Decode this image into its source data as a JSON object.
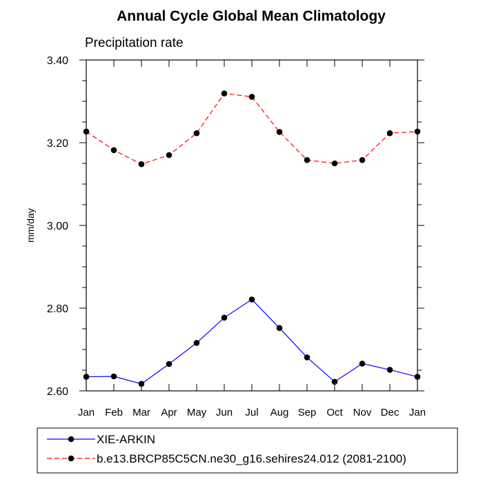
{
  "chart_data": {
    "type": "line",
    "title": "Annual Cycle Global Mean Climatology",
    "subtitle": "Precipitation rate",
    "xlabel": "",
    "ylabel": "mm/day",
    "ylim": [
      2.6,
      3.4
    ],
    "yticks": [
      "2.60",
      "2.80",
      "3.00",
      "3.20",
      "3.40"
    ],
    "categories": [
      "Jan",
      "Feb",
      "Mar",
      "Apr",
      "May",
      "Jun",
      "Jul",
      "Aug",
      "Sep",
      "Oct",
      "Nov",
      "Dec",
      "Jan"
    ],
    "grid": false,
    "legend_position": "bottom",
    "series": [
      {
        "name": "XIE-ARKIN",
        "color": "#0000ff",
        "line_style": "solid",
        "marker": "filled-circle",
        "values": [
          2.634,
          2.635,
          2.617,
          2.665,
          2.716,
          2.777,
          2.821,
          2.752,
          2.681,
          2.622,
          2.666,
          2.651,
          2.634
        ]
      },
      {
        "name": "b.e13.BRCP85C5CN.ne30_g16.sehires24.012 (2081-2100)",
        "color": "#ff0000",
        "line_style": "dashed",
        "marker": "filled-circle",
        "values": [
          3.227,
          3.182,
          3.148,
          3.17,
          3.223,
          3.319,
          3.311,
          3.226,
          3.158,
          3.15,
          3.158,
          3.223,
          3.227
        ]
      }
    ]
  }
}
